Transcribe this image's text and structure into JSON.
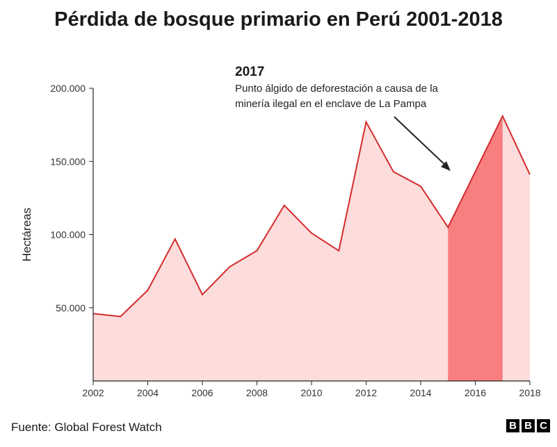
{
  "colors": {
    "line": "#d42b2b",
    "fill": "#fddcdc",
    "highlight": "#f77f7f",
    "axis": "#222222",
    "arrow": "#222222"
  },
  "header": {
    "title": "Pérdida de bosque primario en Perú 2001-2018"
  },
  "footer": {
    "source": "Fuente: Global Forest Watch",
    "logo": [
      "B",
      "B",
      "C"
    ]
  },
  "chart_data": {
    "type": "area",
    "title": "Pérdida de bosque primario en Perú 2001-2018",
    "xlabel": "",
    "ylabel": "Hectáreas",
    "x": [
      2002,
      2003,
      2004,
      2005,
      2006,
      2007,
      2008,
      2009,
      2010,
      2011,
      2012,
      2013,
      2014,
      2015,
      2016,
      2017,
      2018
    ],
    "values": [
      46000,
      44000,
      62000,
      97000,
      59000,
      78000,
      89000,
      120000,
      101000,
      89000,
      177000,
      143000,
      133000,
      105000,
      143000,
      181000,
      141000
    ],
    "xlim": [
      2002,
      2018
    ],
    "ylim": [
      0,
      200000
    ],
    "yticks": [
      50000,
      100000,
      150000,
      200000
    ],
    "ytick_labels": [
      "50.000",
      "100.000",
      "150.000",
      "200.000"
    ],
    "xticks": [
      2002,
      2004,
      2006,
      2008,
      2010,
      2012,
      2014,
      2016,
      2018
    ],
    "xtick_labels": [
      "2002",
      "2004",
      "2006",
      "2008",
      "2010",
      "2012",
      "2014",
      "2016",
      "2018"
    ],
    "highlight_range": [
      2015,
      2017
    ],
    "grid": false,
    "annotation": {
      "year": "2017",
      "lines": [
        "Punto álgido de deforestación a causa de la",
        "minería ilegal en el enclave de La Pampa"
      ]
    }
  }
}
